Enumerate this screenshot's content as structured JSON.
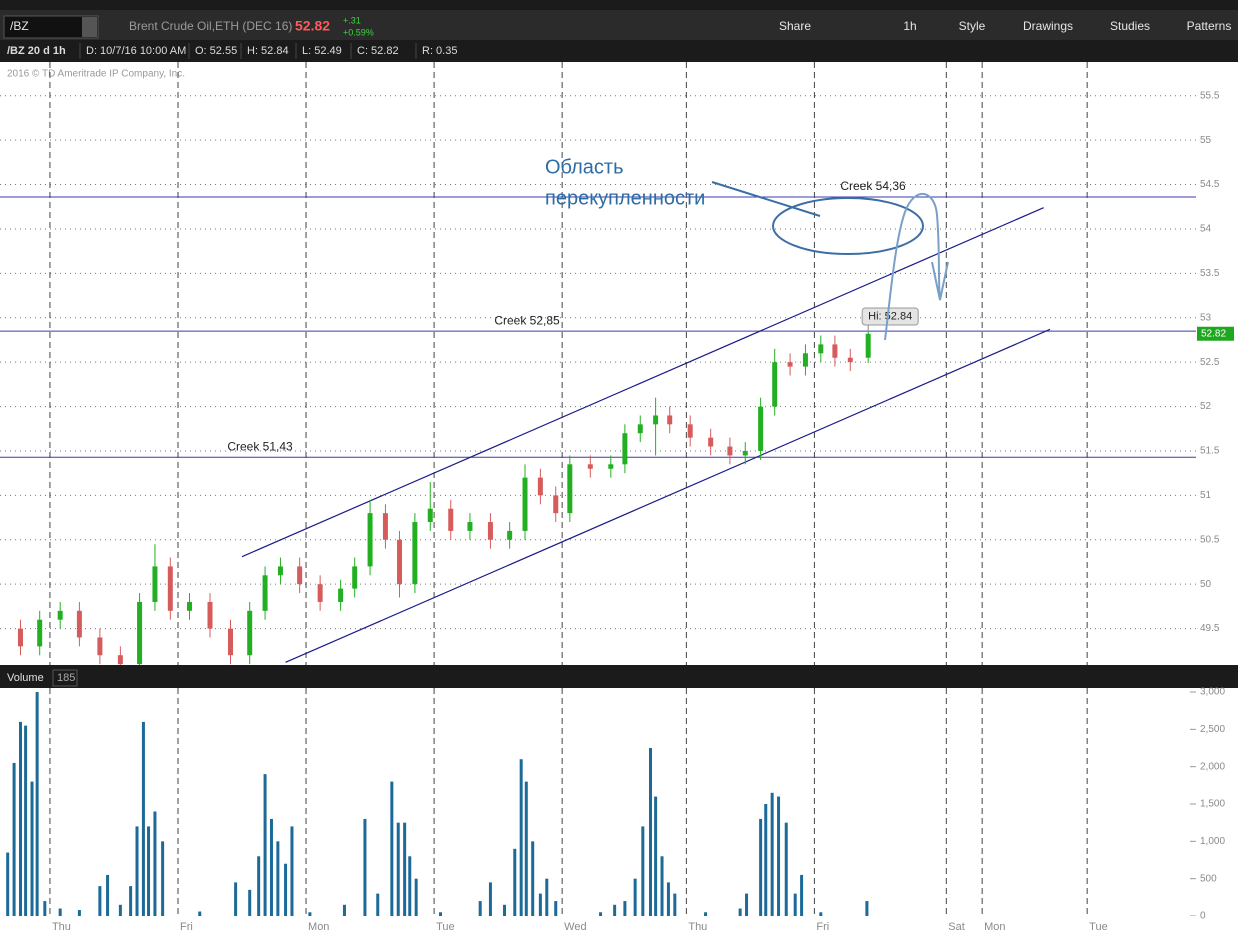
{
  "toolbar": {
    "symbol": "/BZ",
    "description": "Brent Crude Oil,ETH (DEC 16)",
    "last": "52.82",
    "change": "+.31",
    "change_pct": "+0.59%",
    "buttons": [
      "Share",
      "1h",
      "Style",
      "Drawings",
      "Studies",
      "Patterns"
    ]
  },
  "info_bar": {
    "study": "/BZ 20 d 1h",
    "fields": [
      "D: 10/7/16 10:00 AM",
      "O: 52.55",
      "H: 52.84",
      "L: 52.49",
      "C: 52.82",
      "R: 0.35"
    ]
  },
  "copyright": "2016 © TD Ameritrade IP Company, Inc.",
  "chart_data": [
    {
      "type": "candlestick",
      "x": [
        -0.23,
        -0.08,
        0.08,
        0.23,
        0.39,
        0.55,
        0.7,
        0.82,
        0.94,
        1.09,
        1.25,
        1.41,
        1.56,
        1.68,
        1.8,
        1.95,
        2.11,
        2.27,
        2.38,
        2.5,
        2.62,
        2.73,
        2.85,
        2.97,
        3.13,
        3.28,
        3.44,
        3.59,
        3.71,
        3.83,
        3.95,
        4.06,
        4.22,
        4.38,
        4.49,
        4.61,
        4.73,
        4.84,
        5.0,
        5.16,
        5.31,
        5.43,
        5.55,
        5.66,
        5.78,
        5.9,
        6.02,
        6.13,
        6.25,
        6.39
      ],
      "open": [
        49.5,
        49.3,
        49.6,
        49.7,
        49.4,
        49.2,
        49.1,
        49.8,
        50.2,
        49.7,
        49.8,
        49.5,
        49.2,
        49.7,
        50.1,
        50.2,
        50.0,
        49.8,
        49.95,
        50.2,
        50.8,
        50.5,
        50.0,
        50.7,
        50.85,
        50.6,
        50.7,
        50.5,
        50.6,
        51.2,
        51.0,
        50.8,
        51.35,
        51.3,
        51.35,
        51.7,
        51.8,
        51.9,
        51.8,
        51.65,
        51.55,
        51.45,
        51.5,
        52.0,
        52.5,
        52.45,
        52.6,
        52.7,
        52.55,
        52.55
      ],
      "high": [
        49.6,
        49.7,
        49.8,
        49.8,
        49.5,
        49.3,
        49.9,
        50.45,
        50.3,
        49.9,
        49.9,
        49.6,
        49.8,
        50.2,
        50.3,
        50.3,
        50.1,
        50.05,
        50.3,
        50.95,
        50.9,
        50.6,
        50.8,
        51.15,
        50.95,
        50.8,
        50.8,
        50.7,
        51.35,
        51.3,
        51.1,
        51.45,
        51.45,
        51.45,
        51.8,
        51.9,
        52.1,
        52.0,
        51.9,
        51.75,
        51.65,
        51.6,
        52.1,
        52.65,
        52.6,
        52.7,
        52.8,
        52.8,
        52.65,
        52.84
      ],
      "low": [
        49.2,
        49.2,
        49.5,
        49.3,
        49.1,
        49.0,
        49.0,
        49.7,
        49.6,
        49.6,
        49.4,
        49.1,
        49.1,
        49.6,
        50.0,
        49.9,
        49.7,
        49.7,
        49.85,
        50.1,
        50.4,
        49.85,
        49.9,
        50.6,
        50.5,
        50.5,
        50.4,
        50.4,
        50.5,
        50.9,
        50.7,
        50.7,
        51.2,
        51.2,
        51.25,
        51.6,
        51.45,
        51.7,
        51.55,
        51.45,
        51.35,
        51.35,
        51.4,
        51.9,
        52.35,
        52.35,
        52.5,
        52.45,
        52.4,
        52.49
      ],
      "close": [
        49.3,
        49.6,
        49.7,
        49.4,
        49.2,
        49.1,
        49.8,
        50.2,
        49.7,
        49.8,
        49.5,
        49.2,
        49.7,
        50.1,
        50.2,
        50.0,
        49.8,
        49.95,
        50.2,
        50.8,
        50.5,
        50.0,
        50.7,
        50.85,
        50.6,
        50.7,
        50.5,
        50.6,
        51.2,
        51.0,
        50.8,
        51.35,
        51.3,
        51.35,
        51.7,
        51.8,
        51.9,
        51.8,
        51.65,
        51.55,
        51.45,
        51.5,
        52.0,
        52.5,
        52.45,
        52.6,
        52.7,
        52.55,
        52.5,
        52.82
      ],
      "up_color": "#22b022",
      "down_color": "#d65c5c",
      "ylim": [
        49.09,
        55.88
      ],
      "yticks": [
        49.5,
        50,
        50.5,
        51,
        51.5,
        52,
        52.5,
        53,
        53.5,
        54,
        54.5,
        55,
        55.5
      ],
      "grid": true,
      "horizontal_lines": [
        {
          "value": 54.36,
          "label": "Creek 54,36"
        },
        {
          "value": 52.85,
          "label": "Creek 52,85"
        },
        {
          "value": 51.43,
          "label": "Creek 51,43"
        }
      ],
      "line_color": "#3a3ab0",
      "trendlines": [
        {
          "x": [
            1.5,
            7.76
          ],
          "y": [
            50.31,
            54.24
          ]
        },
        {
          "x": [
            1.84,
            7.81
          ],
          "y": [
            49.12,
            52.87
          ]
        }
      ],
      "trend_color": "#1a1a8c",
      "annotation": [
        "Область",
        "перекупленности"
      ],
      "hi_label": {
        "value": 52.84,
        "label": "Hi: 52.84"
      },
      "last_price": 52.82,
      "last_price_color": "#1fa81f"
    },
    {
      "type": "bar",
      "title": "Volume",
      "current_volume": 185,
      "color": "#1c6a98",
      "x": [
        -0.33,
        -0.28,
        -0.23,
        -0.19,
        -0.14,
        -0.1,
        -0.04,
        0.08,
        0.23,
        0.39,
        0.45,
        0.55,
        0.63,
        0.68,
        0.73,
        0.77,
        0.82,
        0.88,
        1.17,
        1.45,
        1.56,
        1.63,
        1.68,
        1.73,
        1.78,
        1.84,
        1.89,
        2.03,
        2.3,
        2.46,
        2.56,
        2.67,
        2.72,
        2.77,
        2.81,
        2.86,
        3.05,
        3.36,
        3.44,
        3.55,
        3.63,
        3.68,
        3.72,
        3.77,
        3.83,
        3.88,
        3.95,
        4.3,
        4.41,
        4.49,
        4.57,
        4.63,
        4.69,
        4.73,
        4.78,
        4.83,
        4.88,
        5.12,
        5.39,
        5.44,
        5.55,
        5.59,
        5.64,
        5.69,
        5.75,
        5.82,
        5.87,
        6.02,
        6.38
      ],
      "values": [
        850,
        2050,
        2600,
        2550,
        1800,
        3000,
        200,
        100,
        80,
        400,
        550,
        150,
        400,
        1200,
        2600,
        1200,
        1400,
        1000,
        60,
        450,
        350,
        800,
        1900,
        1300,
        1000,
        700,
        1200,
        50,
        150,
        1300,
        300,
        1800,
        1250,
        1250,
        800,
        500,
        50,
        200,
        450,
        150,
        900,
        2100,
        1800,
        1000,
        300,
        500,
        200,
        50,
        150,
        200,
        500,
        1200,
        2250,
        1600,
        800,
        450,
        300,
        50,
        100,
        300,
        1300,
        1500,
        1650,
        1600,
        1250,
        300,
        550,
        50,
        200
      ],
      "ylim": [
        0,
        3054
      ],
      "yticks": [
        0,
        500,
        {
          "value": 1000,
          "label": "1,000"
        },
        {
          "value": 1500,
          "label": "1,500"
        },
        {
          "value": 2000,
          "label": "2,000"
        },
        {
          "value": 2500,
          "label": "2,500"
        },
        {
          "value": 3000,
          "label": "3,000"
        }
      ],
      "xlim": [
        -0.39,
        8.95
      ],
      "xticks": [
        {
          "value": 0,
          "label": "Thu"
        },
        {
          "value": 1,
          "label": "Fri"
        },
        {
          "value": 2,
          "label": "Mon"
        },
        {
          "value": 3,
          "label": "Tue"
        },
        {
          "value": 4,
          "label": "Wed"
        },
        {
          "value": 4.97,
          "label": "Thu"
        },
        {
          "value": 5.97,
          "label": "Fri"
        },
        {
          "value": 7,
          "label": "Sat"
        },
        {
          "value": 7.28,
          "label": "Mon"
        },
        {
          "value": 8.1,
          "label": "Tue"
        }
      ]
    }
  ]
}
